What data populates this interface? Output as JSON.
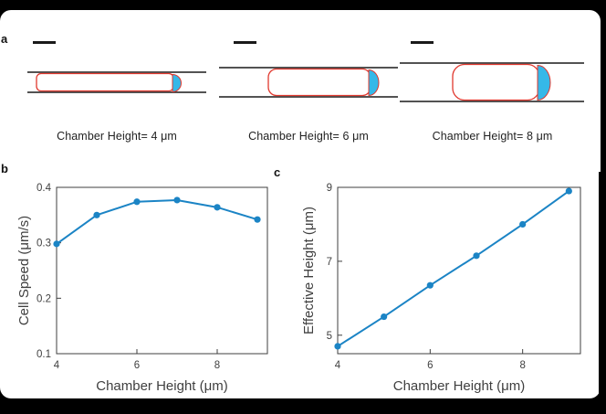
{
  "colors": {
    "line": "#1b84c5",
    "cell_outline": "#e0382e",
    "protrusion_fill": "#35b8e8",
    "wall": "#1a1a1a",
    "axis": "#3f3f3f",
    "page_background": "#000000",
    "figure_background": "#ffffff"
  },
  "panel_a": {
    "label": "a",
    "schematics": [
      {
        "caption": "Chamber Height= 4 μm",
        "chamber_height_um": 4
      },
      {
        "caption": "Chamber Height= 6 μm",
        "chamber_height_um": 6
      },
      {
        "caption": "Chamber Height= 8 μm",
        "chamber_height_um": 8
      }
    ]
  },
  "panel_b": {
    "label": "b"
  },
  "panel_c": {
    "label": "c"
  },
  "chart_data": [
    {
      "id": "cell-speed-vs-chamber-height",
      "type": "line",
      "x": [
        4,
        5,
        6,
        7,
        8,
        9
      ],
      "y": [
        0.298,
        0.35,
        0.374,
        0.377,
        0.364,
        0.342
      ],
      "title": "",
      "xlabel": "Chamber Height (μm)",
      "ylabel": "Cell Speed (μm/s)",
      "xlim": [
        4,
        9.25
      ],
      "ylim": [
        0.1,
        0.4
      ],
      "xticks": [
        4,
        6,
        8
      ],
      "xtick_labels": [
        "4",
        "6",
        "8"
      ],
      "yticks": [
        0.1,
        0.2,
        0.3,
        0.4
      ],
      "ytick_labels": [
        "0.1",
        "0.2",
        "0.3",
        "0.4"
      ],
      "grid": false,
      "legend": "none",
      "line_color": "#1b84c5",
      "marker": "circle",
      "marker_size": 3.6
    },
    {
      "id": "effective-height-vs-chamber-height",
      "type": "line",
      "x": [
        4,
        5,
        6,
        7,
        8,
        9
      ],
      "y": [
        4.7,
        5.5,
        6.35,
        7.15,
        8.0,
        8.9
      ],
      "title": "",
      "xlabel": "Chamber Height (μm)",
      "ylabel": "Effective Height (μm)",
      "xlim": [
        4,
        9.25
      ],
      "ylim": [
        4.5,
        9.0
      ],
      "xticks": [
        4,
        6,
        8
      ],
      "xtick_labels": [
        "4",
        "6",
        "8"
      ],
      "yticks": [
        5,
        7,
        9
      ],
      "ytick_labels": [
        "5",
        "7",
        "9"
      ],
      "grid": false,
      "legend": "none",
      "line_color": "#1b84c5",
      "marker": "circle",
      "marker_size": 3.6
    }
  ]
}
